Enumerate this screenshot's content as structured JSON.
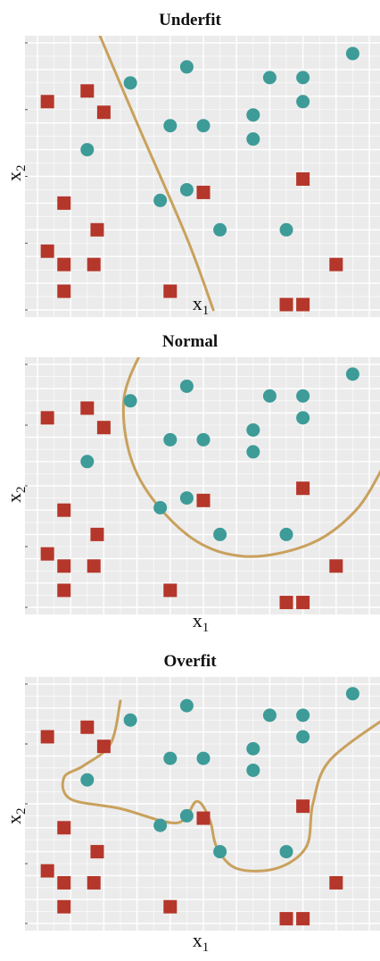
{
  "chart_data": [
    {
      "type": "scatter",
      "title": "Underfit",
      "xlabel": "x",
      "xlabel_sub": "1",
      "ylabel": "x",
      "ylabel_sub": "2",
      "xlim": [
        0,
        10
      ],
      "ylim": [
        0,
        10
      ],
      "grid": true,
      "series": [
        {
          "marker": "square",
          "color": "#b5362a",
          "points": [
            [
              0.3,
              7.8
            ],
            [
              1.5,
              8.2
            ],
            [
              2.0,
              7.4
            ],
            [
              0.8,
              4.0
            ],
            [
              1.8,
              3.0
            ],
            [
              0.3,
              2.2
            ],
            [
              0.8,
              1.7
            ],
            [
              1.7,
              1.7
            ],
            [
              0.8,
              0.7
            ],
            [
              4.0,
              0.7
            ],
            [
              5.0,
              4.4
            ],
            [
              8.0,
              4.9
            ],
            [
              9.0,
              1.7
            ],
            [
              7.5,
              0.2
            ],
            [
              8.0,
              0.2
            ]
          ]
        },
        {
          "marker": "circle",
          "color": "#3d9b98",
          "points": [
            [
              9.5,
              9.6
            ],
            [
              4.5,
              9.1
            ],
            [
              7.0,
              8.7
            ],
            [
              8.0,
              8.7
            ],
            [
              2.8,
              8.5
            ],
            [
              8.0,
              7.8
            ],
            [
              4.0,
              6.9
            ],
            [
              5.0,
              6.9
            ],
            [
              6.5,
              7.3
            ],
            [
              6.5,
              6.4
            ],
            [
              1.5,
              6.0
            ],
            [
              3.7,
              4.1
            ],
            [
              4.5,
              4.5
            ],
            [
              5.5,
              3.0
            ],
            [
              7.5,
              3.0
            ]
          ]
        }
      ],
      "boundary": [
        [
          1.7,
          10.8
        ],
        [
          3.0,
          7.0
        ],
        [
          4.5,
          2.7
        ],
        [
          5.3,
          0.0
        ]
      ]
    },
    {
      "type": "scatter",
      "title": "Normal",
      "xlabel": "x",
      "xlabel_sub": "1",
      "ylabel": "x",
      "ylabel_sub": "2",
      "xlim": [
        0,
        10
      ],
      "ylim": [
        0,
        10
      ],
      "grid": true,
      "series": [
        {
          "marker": "square",
          "color": "#b5362a",
          "points": [
            [
              0.3,
              7.8
            ],
            [
              1.5,
              8.2
            ],
            [
              2.0,
              7.4
            ],
            [
              0.8,
              4.0
            ],
            [
              1.8,
              3.0
            ],
            [
              0.3,
              2.2
            ],
            [
              0.8,
              1.7
            ],
            [
              1.7,
              1.7
            ],
            [
              0.8,
              0.7
            ],
            [
              4.0,
              0.7
            ],
            [
              5.0,
              4.4
            ],
            [
              8.0,
              4.9
            ],
            [
              9.0,
              1.7
            ],
            [
              7.5,
              0.2
            ],
            [
              8.0,
              0.2
            ]
          ]
        },
        {
          "marker": "circle",
          "color": "#3d9b98",
          "points": [
            [
              9.5,
              9.6
            ],
            [
              4.5,
              9.1
            ],
            [
              7.0,
              8.7
            ],
            [
              8.0,
              8.7
            ],
            [
              2.8,
              8.5
            ],
            [
              8.0,
              7.8
            ],
            [
              4.0,
              6.9
            ],
            [
              5.0,
              6.9
            ],
            [
              6.5,
              7.3
            ],
            [
              6.5,
              6.4
            ],
            [
              1.5,
              6.0
            ],
            [
              3.7,
              4.1
            ],
            [
              4.5,
              4.5
            ],
            [
              5.5,
              3.0
            ],
            [
              7.5,
              3.0
            ]
          ]
        }
      ],
      "boundary": [
        [
          3.3,
          11.0
        ],
        [
          2.6,
          8.5
        ],
        [
          3.0,
          5.5
        ],
        [
          4.5,
          3.0
        ],
        [
          6.2,
          2.1
        ],
        [
          8.2,
          2.6
        ],
        [
          9.6,
          4.0
        ],
        [
          10.5,
          6.0
        ]
      ]
    },
    {
      "type": "scatter",
      "title": "Overfit",
      "xlabel": "x",
      "xlabel_sub": "1",
      "ylabel": "x",
      "ylabel_sub": "2",
      "xlim": [
        0,
        10
      ],
      "ylim": [
        0,
        10
      ],
      "grid": true,
      "series": [
        {
          "marker": "square",
          "color": "#b5362a",
          "points": [
            [
              0.3,
              7.8
            ],
            [
              1.5,
              8.2
            ],
            [
              2.0,
              7.4
            ],
            [
              0.8,
              4.0
            ],
            [
              1.8,
              3.0
            ],
            [
              0.3,
              2.2
            ],
            [
              0.8,
              1.7
            ],
            [
              1.7,
              1.7
            ],
            [
              0.8,
              0.7
            ],
            [
              4.0,
              0.7
            ],
            [
              5.0,
              4.4
            ],
            [
              8.0,
              4.9
            ],
            [
              9.0,
              1.7
            ],
            [
              7.5,
              0.2
            ],
            [
              8.0,
              0.2
            ]
          ]
        },
        {
          "marker": "circle",
          "color": "#3d9b98",
          "points": [
            [
              9.5,
              9.6
            ],
            [
              4.5,
              9.1
            ],
            [
              7.0,
              8.7
            ],
            [
              8.0,
              8.7
            ],
            [
              2.8,
              8.5
            ],
            [
              8.0,
              7.8
            ],
            [
              4.0,
              6.9
            ],
            [
              5.0,
              6.9
            ],
            [
              6.5,
              7.3
            ],
            [
              6.5,
              6.4
            ],
            [
              1.5,
              6.0
            ],
            [
              3.7,
              4.1
            ],
            [
              4.5,
              4.5
            ],
            [
              5.5,
              3.0
            ],
            [
              7.5,
              3.0
            ]
          ]
        }
      ],
      "boundary": [
        [
          2.5,
          9.3
        ],
        [
          2.2,
          7.5
        ],
        [
          1.4,
          6.6
        ],
        [
          0.8,
          6.1
        ],
        [
          1.0,
          5.2
        ],
        [
          2.5,
          4.8
        ],
        [
          4.2,
          4.2
        ],
        [
          4.8,
          5.1
        ],
        [
          5.2,
          4.3
        ],
        [
          5.4,
          3.2
        ],
        [
          6.0,
          2.3
        ],
        [
          7.2,
          2.3
        ],
        [
          8.1,
          3.2
        ],
        [
          8.3,
          5.0
        ],
        [
          8.8,
          6.8
        ],
        [
          10.5,
          8.6
        ]
      ]
    }
  ]
}
